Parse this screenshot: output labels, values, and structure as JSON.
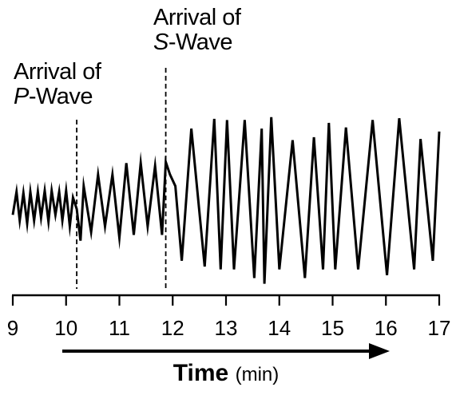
{
  "chart_data": {
    "type": "line",
    "title": "",
    "xlabel": "Time",
    "xunit": "(min)",
    "ylabel": "",
    "xlim": [
      9,
      17
    ],
    "ylim": [
      -1.4,
      1.7
    ],
    "grid": false,
    "xticks": [
      "9",
      "10",
      "11",
      "12",
      "13",
      "14",
      "15",
      "16",
      "17"
    ],
    "series": [
      {
        "x": [
          9.0,
          9.07,
          9.13,
          9.2,
          9.27,
          9.33,
          9.4,
          9.47,
          9.53,
          9.6,
          9.67,
          9.73,
          9.8,
          9.87,
          9.93,
          10.0,
          10.07,
          10.13,
          10.2,
          10.27,
          10.33,
          10.47,
          10.6,
          10.73,
          10.87,
          11.0,
          11.13,
          11.27,
          11.4,
          11.53,
          11.67,
          11.8,
          11.87,
          11.95,
          12.05,
          12.17,
          12.35,
          12.6,
          12.78,
          12.9,
          13.02,
          13.15,
          13.35,
          13.53,
          13.67,
          13.72,
          13.85,
          14.0,
          14.25,
          14.48,
          14.65,
          14.82,
          14.93,
          15.05,
          15.25,
          15.48,
          15.75,
          16.02,
          16.25,
          16.53,
          16.65,
          16.88,
          17.0
        ],
        "y": [
          -0.1,
          0.3,
          -0.2,
          0.28,
          -0.25,
          0.3,
          -0.2,
          0.3,
          -0.15,
          0.32,
          -0.22,
          0.32,
          -0.1,
          0.3,
          -0.2,
          0.32,
          -0.3,
          0.2,
          0.0,
          -0.55,
          0.4,
          -0.4,
          0.6,
          -0.3,
          0.6,
          -0.5,
          0.8,
          -0.45,
          0.8,
          -0.3,
          0.75,
          -0.45,
          0.82,
          0.6,
          0.4,
          -0.9,
          1.4,
          -1.0,
          1.57,
          -1.05,
          1.55,
          -1.05,
          1.55,
          -1.2,
          1.4,
          -1.3,
          1.6,
          -1.05,
          1.2,
          -1.2,
          1.25,
          -1.05,
          1.5,
          -1.05,
          1.42,
          -1.05,
          1.55,
          -1.15,
          1.58,
          -1.05,
          1.22,
          -0.9,
          1.35
        ]
      }
    ],
    "markers": [
      {
        "x": 10.2,
        "label_line1": "Arrival of",
        "label_italic": "P",
        "label_rest": "-Wave"
      },
      {
        "x": 11.87,
        "label_line1": "Arrival of",
        "label_italic": "S",
        "label_rest": "-Wave"
      }
    ]
  }
}
